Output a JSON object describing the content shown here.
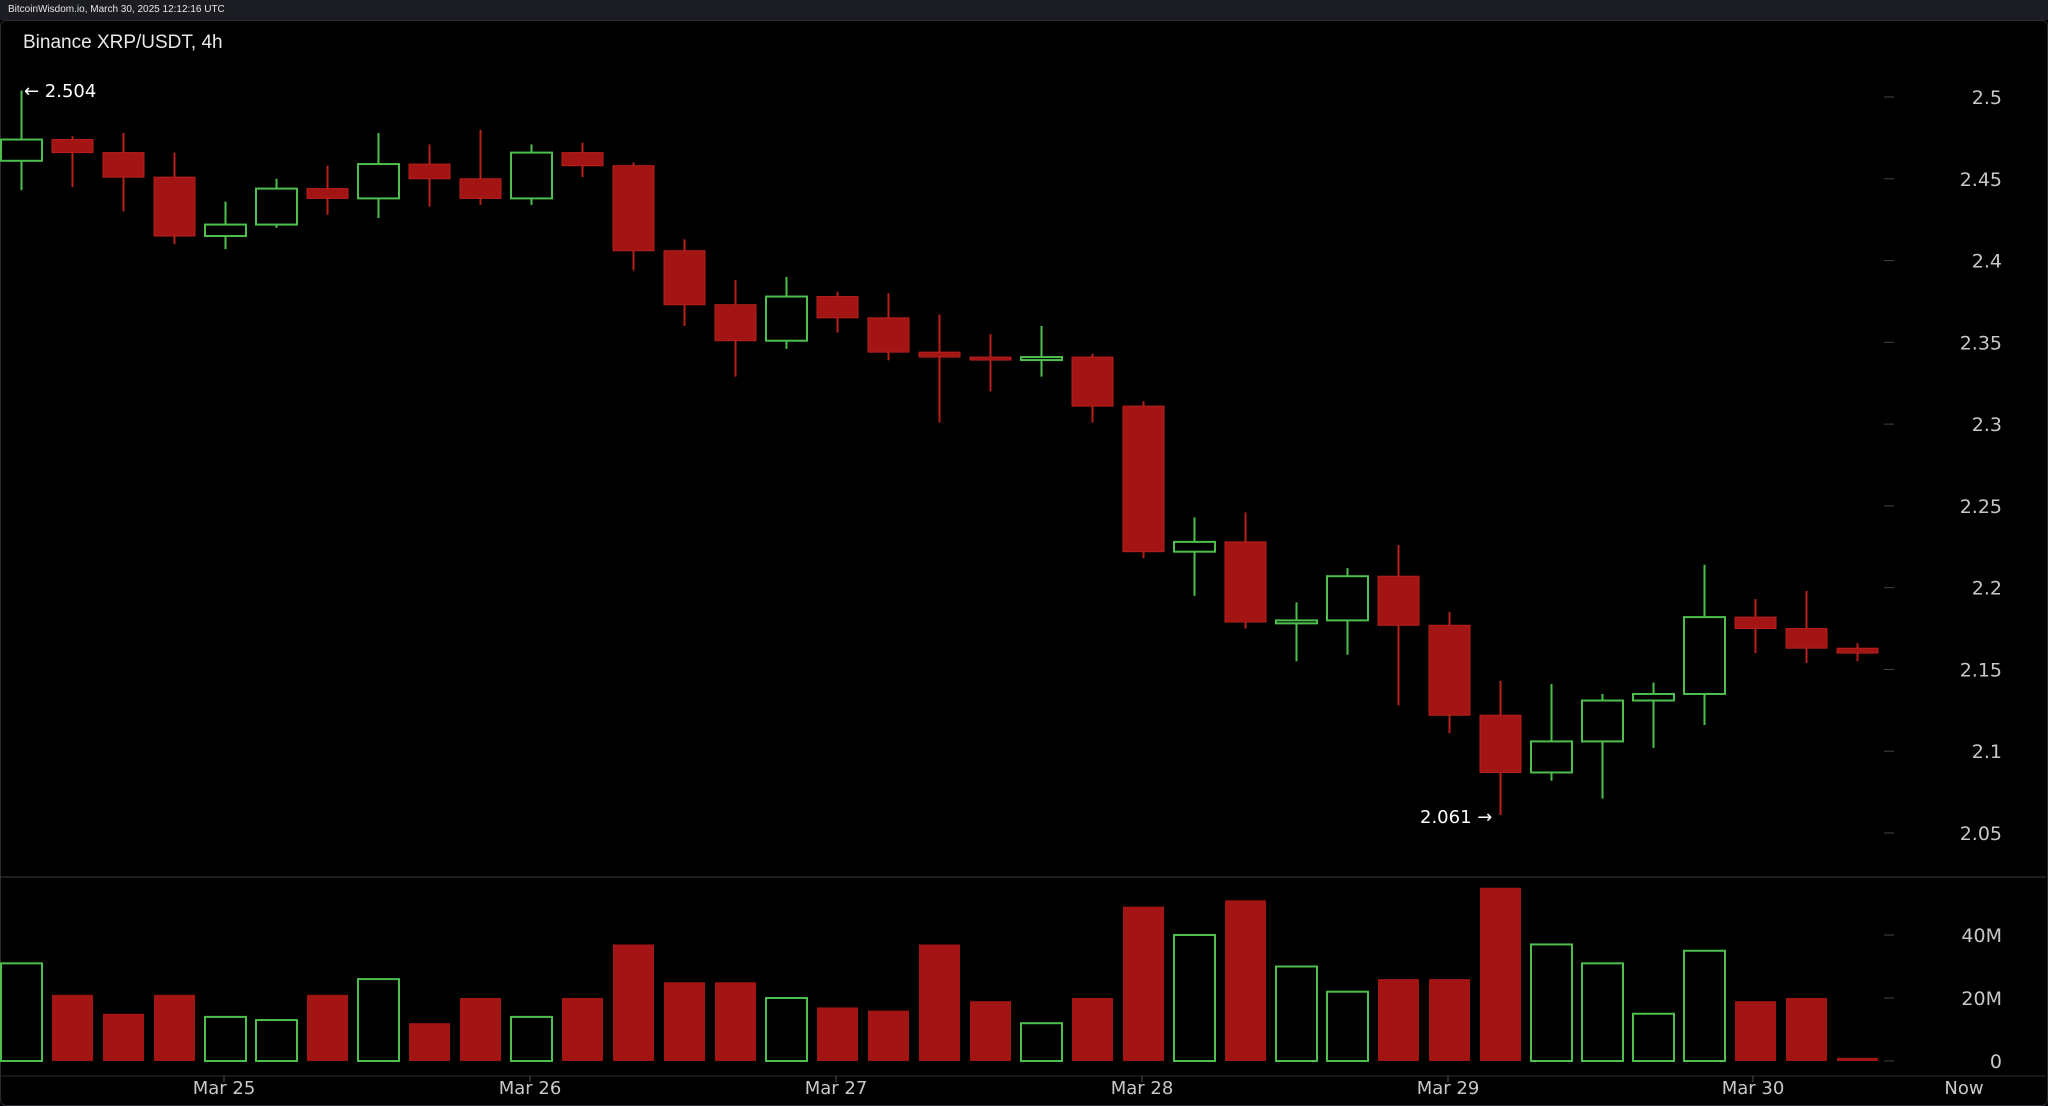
{
  "header": {
    "source_text": "BitcoinWisdom.io, March 30, 2025 12:12:16 UTC"
  },
  "colors": {
    "up": "#4dbf4d",
    "down": "#a31414",
    "down_wick": "#b8201c",
    "axis_text": "#c8c8c8",
    "background": "#000000"
  },
  "chart_data": {
    "type": "candlestick",
    "title": "Binance XRP/USDT, 4h",
    "price_axis": {
      "ticks": [
        "2.5",
        "2.45",
        "2.4",
        "2.35",
        "2.3",
        "2.25",
        "2.2",
        "2.15",
        "2.1",
        "2.05"
      ],
      "range": [
        2.03,
        2.545
      ]
    },
    "volume_axis": {
      "ticks": [
        "40M",
        "20M",
        "0"
      ],
      "range": [
        0,
        56
      ]
    },
    "x_labels": [
      "Mar 25",
      "Mar 26",
      "Mar 27",
      "Mar 28",
      "Mar 29",
      "Mar 30",
      "Now"
    ],
    "annotations": {
      "high": "← 2.504",
      "low": "2.061 →"
    },
    "candles": [
      {
        "o": 2.461,
        "h": 2.504,
        "l": 2.443,
        "c": 2.474,
        "v": 31
      },
      {
        "o": 2.474,
        "h": 2.476,
        "l": 2.445,
        "c": 2.466,
        "v": 21
      },
      {
        "o": 2.466,
        "h": 2.478,
        "l": 2.43,
        "c": 2.451,
        "v": 15
      },
      {
        "o": 2.451,
        "h": 2.466,
        "l": 2.41,
        "c": 2.415,
        "v": 21
      },
      {
        "o": 2.415,
        "h": 2.436,
        "l": 2.407,
        "c": 2.422,
        "v": 14
      },
      {
        "o": 2.422,
        "h": 2.45,
        "l": 2.42,
        "c": 2.444,
        "v": 13
      },
      {
        "o": 2.444,
        "h": 2.458,
        "l": 2.428,
        "c": 2.438,
        "v": 21
      },
      {
        "o": 2.438,
        "h": 2.478,
        "l": 2.426,
        "c": 2.459,
        "v": 26
      },
      {
        "o": 2.459,
        "h": 2.471,
        "l": 2.433,
        "c": 2.45,
        "v": 12
      },
      {
        "o": 2.45,
        "h": 2.48,
        "l": 2.434,
        "c": 2.438,
        "v": 20
      },
      {
        "o": 2.438,
        "h": 2.471,
        "l": 2.434,
        "c": 2.466,
        "v": 14
      },
      {
        "o": 2.466,
        "h": 2.472,
        "l": 2.451,
        "c": 2.458,
        "v": 20
      },
      {
        "o": 2.458,
        "h": 2.46,
        "l": 2.394,
        "c": 2.406,
        "v": 37
      },
      {
        "o": 2.406,
        "h": 2.413,
        "l": 2.36,
        "c": 2.373,
        "v": 25
      },
      {
        "o": 2.373,
        "h": 2.388,
        "l": 2.329,
        "c": 2.351,
        "v": 25
      },
      {
        "o": 2.351,
        "h": 2.39,
        "l": 2.346,
        "c": 2.378,
        "v": 20
      },
      {
        "o": 2.378,
        "h": 2.381,
        "l": 2.356,
        "c": 2.365,
        "v": 17
      },
      {
        "o": 2.365,
        "h": 2.38,
        "l": 2.339,
        "c": 2.344,
        "v": 16
      },
      {
        "o": 2.344,
        "h": 2.367,
        "l": 2.301,
        "c": 2.341,
        "v": 37
      },
      {
        "o": 2.341,
        "h": 2.355,
        "l": 2.32,
        "c": 2.34,
        "v": 19
      },
      {
        "o": 2.34,
        "h": 2.36,
        "l": 2.329,
        "c": 2.341,
        "v": 12
      },
      {
        "o": 2.341,
        "h": 2.343,
        "l": 2.301,
        "c": 2.311,
        "v": 20
      },
      {
        "o": 2.311,
        "h": 2.314,
        "l": 2.218,
        "c": 2.222,
        "v": 49
      },
      {
        "o": 2.222,
        "h": 2.243,
        "l": 2.195,
        "c": 2.228,
        "v": 40
      },
      {
        "o": 2.228,
        "h": 2.246,
        "l": 2.175,
        "c": 2.179,
        "v": 51
      },
      {
        "o": 2.179,
        "h": 2.191,
        "l": 2.155,
        "c": 2.18,
        "v": 30
      },
      {
        "o": 2.18,
        "h": 2.212,
        "l": 2.159,
        "c": 2.207,
        "v": 22
      },
      {
        "o": 2.207,
        "h": 2.226,
        "l": 2.128,
        "c": 2.177,
        "v": 26
      },
      {
        "o": 2.177,
        "h": 2.185,
        "l": 2.111,
        "c": 2.122,
        "v": 26
      },
      {
        "o": 2.122,
        "h": 2.143,
        "l": 2.061,
        "c": 2.087,
        "v": 55
      },
      {
        "o": 2.087,
        "h": 2.141,
        "l": 2.082,
        "c": 2.106,
        "v": 37
      },
      {
        "o": 2.106,
        "h": 2.135,
        "l": 2.071,
        "c": 2.131,
        "v": 31
      },
      {
        "o": 2.131,
        "h": 2.142,
        "l": 2.102,
        "c": 2.135,
        "v": 15
      },
      {
        "o": 2.135,
        "h": 2.214,
        "l": 2.116,
        "c": 2.182,
        "v": 35
      },
      {
        "o": 2.182,
        "h": 2.193,
        "l": 2.16,
        "c": 2.175,
        "v": 19
      },
      {
        "o": 2.175,
        "h": 2.198,
        "l": 2.154,
        "c": 2.163,
        "v": 20
      },
      {
        "o": 2.163,
        "h": 2.166,
        "l": 2.155,
        "c": 2.16,
        "v": 1
      }
    ]
  }
}
